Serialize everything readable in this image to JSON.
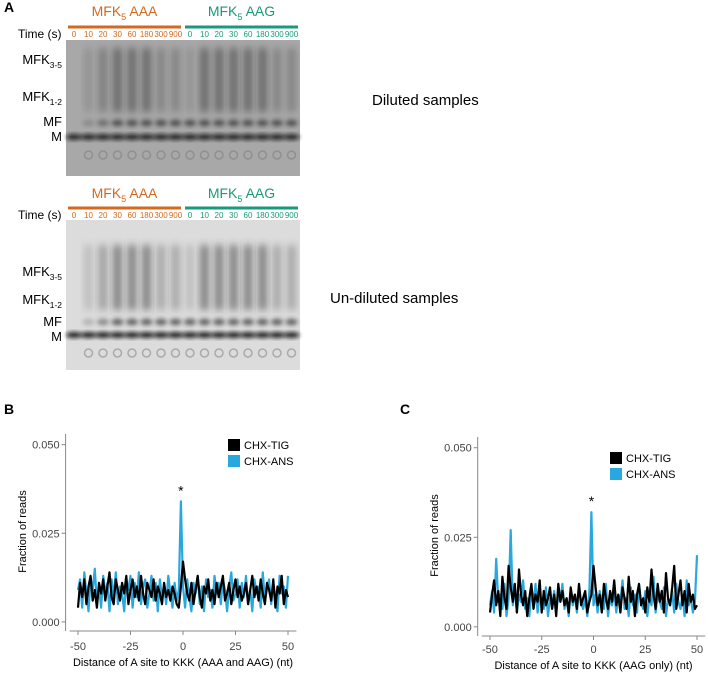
{
  "panel_a": {
    "label": "A",
    "time_label": "Time (s)",
    "lanes": [
      0,
      10,
      20,
      30,
      60,
      180,
      300,
      900
    ],
    "groups": [
      {
        "base": "MFK",
        "sub": "5",
        "suffix": " AAA",
        "color": "#d2691e"
      },
      {
        "base": "MFK",
        "sub": "5",
        "suffix": " AAG",
        "color": "#1a9a7a"
      }
    ],
    "species": [
      {
        "base": "MFK",
        "sub": "3-5"
      },
      {
        "base": "MFK",
        "sub": "1-2"
      },
      {
        "base": "MF"
      },
      {
        "base": "M"
      }
    ],
    "gels": [
      {
        "caption": "Diluted samples"
      },
      {
        "caption": "Un-diluted samples"
      }
    ]
  },
  "chart_data": [
    {
      "type": "line",
      "panel_label": "B",
      "xlabel": "Distance of A site to KKK (AAA and AAG) (nt)",
      "ylabel": "Fraction of reads",
      "annotation": "*",
      "legend": "top-right",
      "xlim": [
        -54,
        54
      ],
      "xticks": [
        -50,
        -25,
        0,
        25,
        50
      ],
      "ylim": [
        -0.002,
        0.053
      ],
      "yticks": [
        {
          "value": 0,
          "label": "0.000"
        },
        {
          "value": 0.025,
          "label": "0.025"
        },
        {
          "value": 0.05,
          "label": "0.050"
        }
      ],
      "x": [
        -50,
        -49,
        -48,
        -47,
        -46,
        -45,
        -44,
        -43,
        -42,
        -41,
        -40,
        -39,
        -38,
        -37,
        -36,
        -35,
        -34,
        -33,
        -32,
        -31,
        -30,
        -29,
        -28,
        -27,
        -26,
        -25,
        -24,
        -23,
        -22,
        -21,
        -20,
        -19,
        -18,
        -17,
        -16,
        -15,
        -14,
        -13,
        -12,
        -11,
        -10,
        -9,
        -8,
        -7,
        -6,
        -5,
        -4,
        -3,
        -2,
        -1,
        0,
        1,
        2,
        3,
        4,
        5,
        6,
        7,
        8,
        9,
        10,
        11,
        12,
        13,
        14,
        15,
        16,
        17,
        18,
        19,
        20,
        21,
        22,
        23,
        24,
        25,
        26,
        27,
        28,
        29,
        30,
        31,
        32,
        33,
        34,
        35,
        36,
        37,
        38,
        39,
        40,
        41,
        42,
        43,
        44,
        45,
        46,
        47,
        48,
        49,
        50
      ],
      "series": [
        {
          "name": "CHX-ANS",
          "color": "#29a8e0",
          "values": [
            0.009,
            0.012,
            0.004,
            0.014,
            0.008,
            0.003,
            0.012,
            0.009,
            0.015,
            0.005,
            0.01,
            0.004,
            0.013,
            0.008,
            0.011,
            0.003,
            0.012,
            0.007,
            0.014,
            0.005,
            0.01,
            0.008,
            0.003,
            0.012,
            0.009,
            0.013,
            0.004,
            0.011,
            0.007,
            0.014,
            0.005,
            0.01,
            0.012,
            0.004,
            0.008,
            0.013,
            0.006,
            0.011,
            0.003,
            0.012,
            0.007,
            0.01,
            0.005,
            0.013,
            0.008,
            0.004,
            0.011,
            0.006,
            0.009,
            0.034,
            0.01,
            0.004,
            0.012,
            0.007,
            0.003,
            0.011,
            0.008,
            0.013,
            0.005,
            0.01,
            0.003,
            0.012,
            0.007,
            0.009,
            0.004,
            0.013,
            0.008,
            0.011,
            0.005,
            0.012,
            0.009,
            0.003,
            0.01,
            0.014,
            0.006,
            0.008,
            0.012,
            0.004,
            0.011,
            0.007,
            0.013,
            0.005,
            0.009,
            0.003,
            0.012,
            0.008,
            0.01,
            0.004,
            0.014,
            0.006,
            0.009,
            0.012,
            0.005,
            0.011,
            0.007,
            0.003,
            0.013,
            0.008,
            0.01,
            0.004,
            0.013
          ]
        },
        {
          "name": "CHX-TIG",
          "color": "#000000",
          "values": [
            0.004,
            0.011,
            0.007,
            0.012,
            0.005,
            0.01,
            0.013,
            0.006,
            0.009,
            0.004,
            0.011,
            0.008,
            0.012,
            0.006,
            0.01,
            0.014,
            0.007,
            0.005,
            0.012,
            0.009,
            0.006,
            0.011,
            0.008,
            0.013,
            0.005,
            0.009,
            0.012,
            0.007,
            0.01,
            0.006,
            0.013,
            0.008,
            0.005,
            0.011,
            0.009,
            0.007,
            0.012,
            0.006,
            0.01,
            0.008,
            0.005,
            0.011,
            0.007,
            0.009,
            0.006,
            0.01,
            0.008,
            0.005,
            0.004,
            0.01,
            0.017,
            0.012,
            0.008,
            0.006,
            0.011,
            0.005,
            0.009,
            0.013,
            0.007,
            0.004,
            0.01,
            0.008,
            0.012,
            0.006,
            0.009,
            0.005,
            0.011,
            0.007,
            0.01,
            0.013,
            0.006,
            0.008,
            0.011,
            0.005,
            0.009,
            0.012,
            0.007,
            0.01,
            0.006,
            0.008,
            0.011,
            0.005,
            0.009,
            0.013,
            0.007,
            0.01,
            0.006,
            0.012,
            0.008,
            0.005,
            0.011,
            0.009,
            0.006,
            0.012,
            0.004,
            0.01,
            0.008,
            0.013,
            0.005,
            0.009,
            0.007
          ]
        }
      ]
    },
    {
      "type": "line",
      "panel_label": "C",
      "xlabel": "Distance of A site to KKK (AAG only) (nt)",
      "ylabel": "Fraction of reads",
      "annotation": "*",
      "legend": "top-right",
      "xlim": [
        -54,
        54
      ],
      "xticks": [
        -50,
        -25,
        0,
        25,
        50
      ],
      "ylim": [
        -0.002,
        0.053
      ],
      "yticks": [
        {
          "value": 0,
          "label": "0.000"
        },
        {
          "value": 0.025,
          "label": "0.025"
        },
        {
          "value": 0.05,
          "label": "0.050"
        }
      ],
      "x": [
        -50,
        -49,
        -48,
        -47,
        -46,
        -45,
        -44,
        -43,
        -42,
        -41,
        -40,
        -39,
        -38,
        -37,
        -36,
        -35,
        -34,
        -33,
        -32,
        -31,
        -30,
        -29,
        -28,
        -27,
        -26,
        -25,
        -24,
        -23,
        -22,
        -21,
        -20,
        -19,
        -18,
        -17,
        -16,
        -15,
        -14,
        -13,
        -12,
        -11,
        -10,
        -9,
        -8,
        -7,
        -6,
        -5,
        -4,
        -3,
        -2,
        -1,
        0,
        1,
        2,
        3,
        4,
        5,
        6,
        7,
        8,
        9,
        10,
        11,
        12,
        13,
        14,
        15,
        16,
        17,
        18,
        19,
        20,
        21,
        22,
        23,
        24,
        25,
        26,
        27,
        28,
        29,
        30,
        31,
        32,
        33,
        34,
        35,
        36,
        37,
        38,
        39,
        40,
        41,
        42,
        43,
        44,
        45,
        46,
        47,
        48,
        49,
        50
      ],
      "series": [
        {
          "name": "CHX-ANS",
          "color": "#29a8e0",
          "values": [
            0.006,
            0.01,
            0.004,
            0.019,
            0.007,
            0.009,
            0.005,
            0.012,
            0.003,
            0.008,
            0.027,
            0.006,
            0.011,
            0.004,
            0.009,
            0.007,
            0.013,
            0.005,
            0.008,
            0.003,
            0.01,
            0.006,
            0.012,
            0.004,
            0.009,
            0.007,
            0.005,
            0.011,
            0.003,
            0.008,
            0.006,
            0.01,
            0.004,
            0.009,
            0.007,
            0.012,
            0.005,
            0.008,
            0.003,
            0.01,
            0.006,
            0.009,
            0.004,
            0.011,
            0.007,
            0.005,
            0.008,
            0.003,
            0.01,
            0.032,
            0.006,
            0.009,
            0.004,
            0.01,
            0.007,
            0.005,
            0.012,
            0.003,
            0.008,
            0.006,
            0.01,
            0.004,
            0.009,
            0.007,
            0.013,
            0.005,
            0.008,
            0.003,
            0.011,
            0.006,
            0.009,
            0.004,
            0.012,
            0.007,
            0.005,
            0.01,
            0.003,
            0.008,
            0.006,
            0.014,
            0.004,
            0.009,
            0.007,
            0.005,
            0.011,
            0.003,
            0.008,
            0.006,
            0.01,
            0.004,
            0.012,
            0.007,
            0.005,
            0.009,
            0.003,
            0.013,
            0.006,
            0.008,
            0.004,
            0.007,
            0.02
          ]
        },
        {
          "name": "CHX-TIG",
          "color": "#000000",
          "values": [
            0.004,
            0.009,
            0.013,
            0.006,
            0.01,
            0.003,
            0.014,
            0.008,
            0.005,
            0.017,
            0.011,
            0.007,
            0.012,
            0.004,
            0.016,
            0.009,
            0.006,
            0.01,
            0.003,
            0.008,
            0.012,
            0.005,
            0.009,
            0.007,
            0.013,
            0.004,
            0.01,
            0.006,
            0.008,
            0.011,
            0.005,
            0.009,
            0.003,
            0.012,
            0.007,
            0.01,
            0.006,
            0.008,
            0.004,
            0.011,
            0.007,
            0.009,
            0.005,
            0.012,
            0.006,
            0.008,
            0.01,
            0.004,
            0.007,
            0.009,
            0.017,
            0.011,
            0.006,
            0.009,
            0.004,
            0.012,
            0.008,
            0.005,
            0.01,
            0.007,
            0.013,
            0.006,
            0.009,
            0.004,
            0.011,
            0.008,
            0.005,
            0.014,
            0.007,
            0.01,
            0.003,
            0.009,
            0.012,
            0.006,
            0.008,
            0.004,
            0.011,
            0.007,
            0.016,
            0.009,
            0.005,
            0.012,
            0.007,
            0.01,
            0.004,
            0.015,
            0.008,
            0.006,
            0.011,
            0.017,
            0.005,
            0.009,
            0.013,
            0.006,
            0.01,
            0.004,
            0.012,
            0.007,
            0.009,
            0.005,
            0.006
          ]
        }
      ]
    }
  ]
}
